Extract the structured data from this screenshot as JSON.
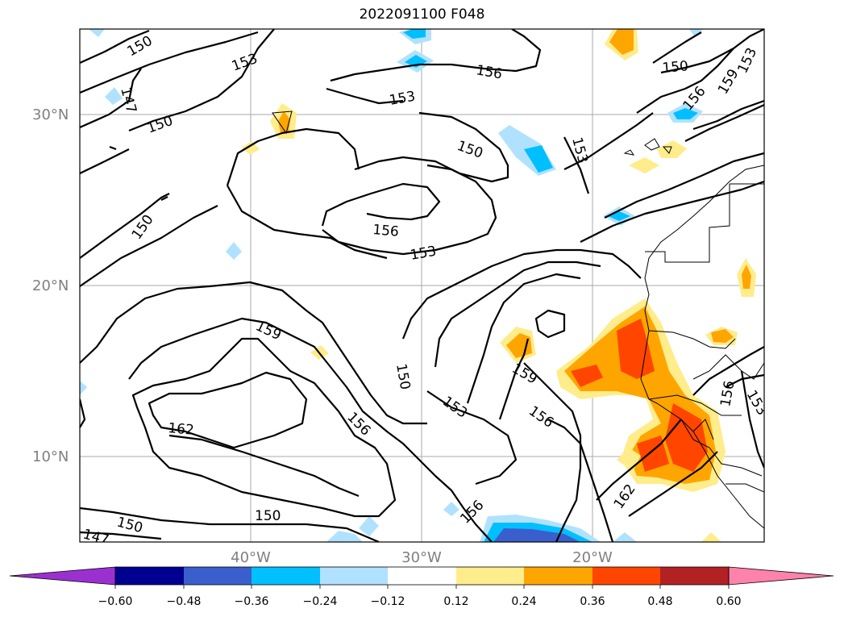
{
  "title": "2022091100 F048",
  "map": {
    "lat_labels": [
      "30°N",
      "20°N",
      "10°N"
    ],
    "lon_labels": [
      "40°W",
      "30°W",
      "20°W"
    ],
    "contour_labels": [
      "150",
      "153",
      "147",
      "156",
      "150",
      "159",
      "153",
      "156",
      "150",
      "153",
      "150",
      "150",
      "153",
      "156",
      "159",
      "156",
      "153",
      "150",
      "162",
      "159",
      "156",
      "153",
      "147",
      "150",
      "150",
      "156",
      "162",
      "156",
      "153"
    ]
  },
  "colorbar": {
    "ticks": [
      "−0.60",
      "−0.48",
      "−0.36",
      "−0.24",
      "−0.12",
      "0.12",
      "0.24",
      "0.36",
      "0.48",
      "0.60"
    ],
    "colors": {
      "under": "#9b30d0",
      "c1": "#000090",
      "c2": "#3a5fcd",
      "c3": "#00bfff",
      "c4": "#b0e2ff",
      "c5": "#ffffff",
      "c6": "#ffec8b",
      "c7": "#ffa500",
      "c8": "#ff4500",
      "c9": "#b22222",
      "over": "#ff82ab"
    }
  }
}
